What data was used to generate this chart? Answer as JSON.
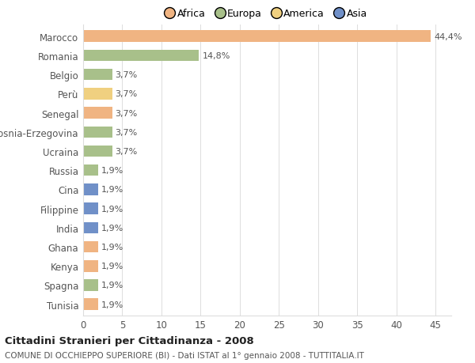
{
  "countries": [
    "Marocco",
    "Romania",
    "Belgio",
    "Perù",
    "Senegal",
    "Bosnia-Erzegovina",
    "Ucraina",
    "Russia",
    "Cina",
    "Filippine",
    "India",
    "Ghana",
    "Kenya",
    "Spagna",
    "Tunisia"
  ],
  "values": [
    44.4,
    14.8,
    3.7,
    3.7,
    3.7,
    3.7,
    3.7,
    1.9,
    1.9,
    1.9,
    1.9,
    1.9,
    1.9,
    1.9,
    1.9
  ],
  "labels": [
    "44,4%",
    "14,8%",
    "3,7%",
    "3,7%",
    "3,7%",
    "3,7%",
    "3,7%",
    "1,9%",
    "1,9%",
    "1,9%",
    "1,9%",
    "1,9%",
    "1,9%",
    "1,9%",
    "1,9%"
  ],
  "colors": [
    "#f0b482",
    "#a8c08a",
    "#a8c08a",
    "#f0d080",
    "#f0b482",
    "#a8c08a",
    "#a8c08a",
    "#a8c08a",
    "#7090c8",
    "#7090c8",
    "#7090c8",
    "#f0b482",
    "#f0b482",
    "#a8c08a",
    "#f0b482"
  ],
  "legend_labels": [
    "Africa",
    "Europa",
    "America",
    "Asia"
  ],
  "legend_colors": [
    "#f0b482",
    "#a8c08a",
    "#f0d080",
    "#7090c8"
  ],
  "title": "Cittadini Stranieri per Cittadinanza - 2008",
  "subtitle": "COMUNE DI OCCHIEPPO SUPERIORE (BI) - Dati ISTAT al 1° gennaio 2008 - TUTTITALIA.IT",
  "xlim": [
    0,
    47
  ],
  "xticks": [
    0,
    5,
    10,
    15,
    20,
    25,
    30,
    35,
    40,
    45
  ],
  "bg_color": "#ffffff",
  "grid_color": "#dddddd",
  "bar_height": 0.6
}
